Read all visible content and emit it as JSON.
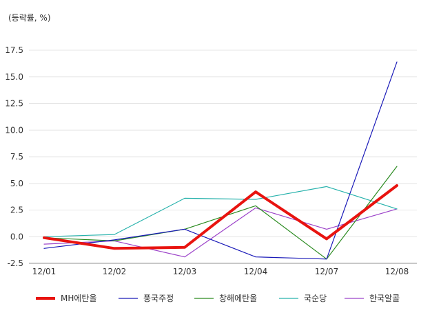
{
  "chart_data": {
    "type": "line",
    "unit_label": "(등락률, %)",
    "categories": [
      "12/01",
      "12/02",
      "12/03",
      "12/04",
      "12/07",
      "12/08"
    ],
    "ylim": [
      -2.5,
      17.5
    ],
    "yticks": [
      -2.5,
      0.0,
      2.5,
      5.0,
      7.5,
      10.0,
      12.5,
      15.0,
      17.5
    ],
    "ytick_labels": [
      "-2.5",
      "0.0",
      "2.5",
      "5.0",
      "7.5",
      "10.0",
      "12.5",
      "15.0",
      "17.5"
    ],
    "grid": true,
    "legend_position": "bottom",
    "series": [
      {
        "name": "MH에탄올",
        "color": "#e8130f",
        "width": 4,
        "values": [
          -0.1,
          -1.1,
          -1.0,
          4.2,
          -0.2,
          4.8
        ]
      },
      {
        "name": "풍국주정",
        "color": "#1a1ab8",
        "width": 1.2,
        "values": [
          -1.1,
          -0.3,
          0.7,
          -1.9,
          -2.1,
          16.4
        ]
      },
      {
        "name": "창해에탄올",
        "color": "#2a8a1f",
        "width": 1.2,
        "values": [
          -0.1,
          -0.4,
          0.7,
          2.9,
          -2.1,
          6.6
        ]
      },
      {
        "name": "국순당",
        "color": "#27b2ac",
        "width": 1.2,
        "values": [
          0.0,
          0.2,
          3.6,
          3.5,
          4.7,
          2.6
        ]
      },
      {
        "name": "한국알콜",
        "color": "#9c43c9",
        "width": 1.2,
        "values": [
          -0.7,
          -0.4,
          -1.9,
          2.7,
          0.7,
          2.6
        ]
      }
    ]
  }
}
